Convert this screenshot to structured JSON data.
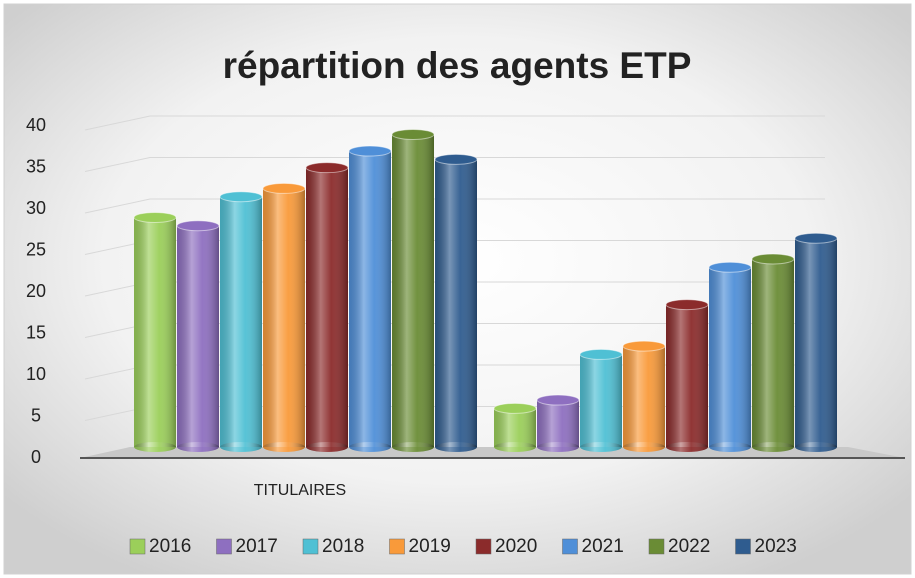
{
  "chart_data": {
    "type": "bar3d",
    "title": "répartition des agents ETP",
    "categories": [
      "TITULAIRES",
      null
    ],
    "series": [
      {
        "name": "2016",
        "color": "#9bcf5a",
        "values": [
          28.5,
          5.5
        ]
      },
      {
        "name": "2017",
        "color": "#8e6fc0",
        "values": [
          27.5,
          6.5
        ]
      },
      {
        "name": "2018",
        "color": "#4fc0d4",
        "values": [
          31,
          12
        ]
      },
      {
        "name": "2019",
        "color": "#f99a3a",
        "values": [
          32,
          13
        ]
      },
      {
        "name": "2020",
        "color": "#8b2b2b",
        "values": [
          34.5,
          18
        ]
      },
      {
        "name": "2021",
        "color": "#4f8fd8",
        "values": [
          36.5,
          22.5
        ]
      },
      {
        "name": "2022",
        "color": "#6a8c35",
        "values": [
          38.5,
          23.5
        ]
      },
      {
        "name": "2023",
        "color": "#2f5c8f",
        "values": [
          35.5,
          26
        ]
      }
    ],
    "ylim": [
      0,
      40
    ],
    "yticks": [
      0,
      5,
      10,
      15,
      20,
      25,
      30,
      35,
      40
    ],
    "grid": true,
    "legend": "bottom"
  }
}
